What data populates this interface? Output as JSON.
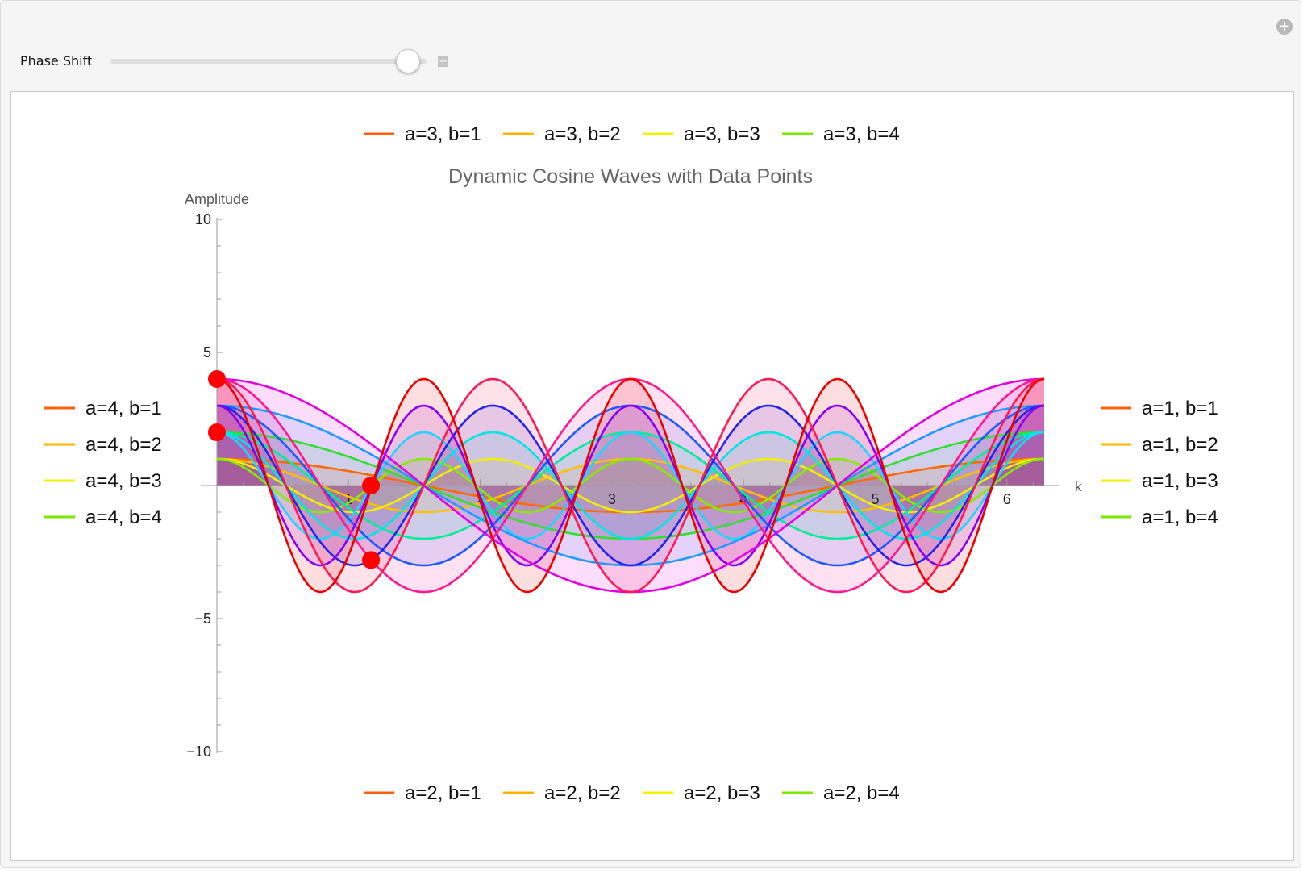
{
  "control": {
    "label": "Phase Shift",
    "slider_fraction": 0.94
  },
  "chart_data": {
    "type": "line",
    "title": "Dynamic Cosine Waves with Data Points",
    "xlabel": "k",
    "ylabel": "Amplitude",
    "xlim": [
      0,
      6.2832
    ],
    "ylim": [
      -10,
      10
    ],
    "x_ticks": [
      1,
      2,
      3,
      4,
      5,
      6
    ],
    "y_ticks": [
      {
        "value": 10,
        "label": "10"
      },
      {
        "value": 5,
        "label": "5"
      },
      {
        "value": -5,
        "label": "−5"
      },
      {
        "value": -10,
        "label": "−10"
      }
    ],
    "legend_top": [
      {
        "label": "a=3, b=1",
        "color": "#ff5f0f"
      },
      {
        "label": "a=3, b=2",
        "color": "#ffb300"
      },
      {
        "label": "a=3, b=3",
        "color": "#f2f200"
      },
      {
        "label": "a=3, b=4",
        "color": "#7be800"
      }
    ],
    "legend_left": [
      {
        "label": "a=4, b=1",
        "color": "#ff5f0f"
      },
      {
        "label": "a=4, b=2",
        "color": "#ffb300"
      },
      {
        "label": "a=4, b=3",
        "color": "#f2f200"
      },
      {
        "label": "a=4, b=4",
        "color": "#7be800"
      }
    ],
    "legend_right": [
      {
        "label": "a=1, b=1",
        "color": "#ff5f0f"
      },
      {
        "label": "a=1, b=2",
        "color": "#ffb300"
      },
      {
        "label": "a=1, b=3",
        "color": "#f2f200"
      },
      {
        "label": "a=1, b=4",
        "color": "#7be800"
      }
    ],
    "legend_bottom": [
      {
        "label": "a=2, b=1",
        "color": "#ff5f0f"
      },
      {
        "label": "a=2, b=2",
        "color": "#ffb300"
      },
      {
        "label": "a=2, b=3",
        "color": "#f2f200"
      },
      {
        "label": "a=2, b=4",
        "color": "#7be800"
      }
    ],
    "series": [
      {
        "amplitude": 1,
        "frequency": 1,
        "color": "#ff6a00"
      },
      {
        "amplitude": 1,
        "frequency": 2,
        "color": "#ffbf00"
      },
      {
        "amplitude": 1,
        "frequency": 3,
        "color": "#f0f000"
      },
      {
        "amplitude": 1,
        "frequency": 4,
        "color": "#85ee00"
      },
      {
        "amplitude": 2,
        "frequency": 1,
        "color": "#33dd33"
      },
      {
        "amplitude": 2,
        "frequency": 2,
        "color": "#00ee99"
      },
      {
        "amplitude": 2,
        "frequency": 3,
        "color": "#00e5e5"
      },
      {
        "amplitude": 2,
        "frequency": 4,
        "color": "#1fd4ff"
      },
      {
        "amplitude": 3,
        "frequency": 1,
        "color": "#1f9bff"
      },
      {
        "amplitude": 3,
        "frequency": 2,
        "color": "#1f5aff"
      },
      {
        "amplitude": 3,
        "frequency": 3,
        "color": "#2525ea"
      },
      {
        "amplitude": 3,
        "frequency": 4,
        "color": "#8a00f0"
      },
      {
        "amplitude": 4,
        "frequency": 1,
        "color": "#e400e4"
      },
      {
        "amplitude": 4,
        "frequency": 2,
        "color": "#ff1890"
      },
      {
        "amplitude": 4,
        "frequency": 3,
        "color": "#ff1a55"
      },
      {
        "amplitude": 4,
        "frequency": 4,
        "color": "#ee0000"
      }
    ],
    "points": [
      {
        "x": 0,
        "y": 4
      },
      {
        "x": 0,
        "y": 2
      },
      {
        "x": 1.17,
        "y": 0
      },
      {
        "x": 1.17,
        "y": -2.8
      }
    ],
    "point_color": "#ff0000"
  }
}
